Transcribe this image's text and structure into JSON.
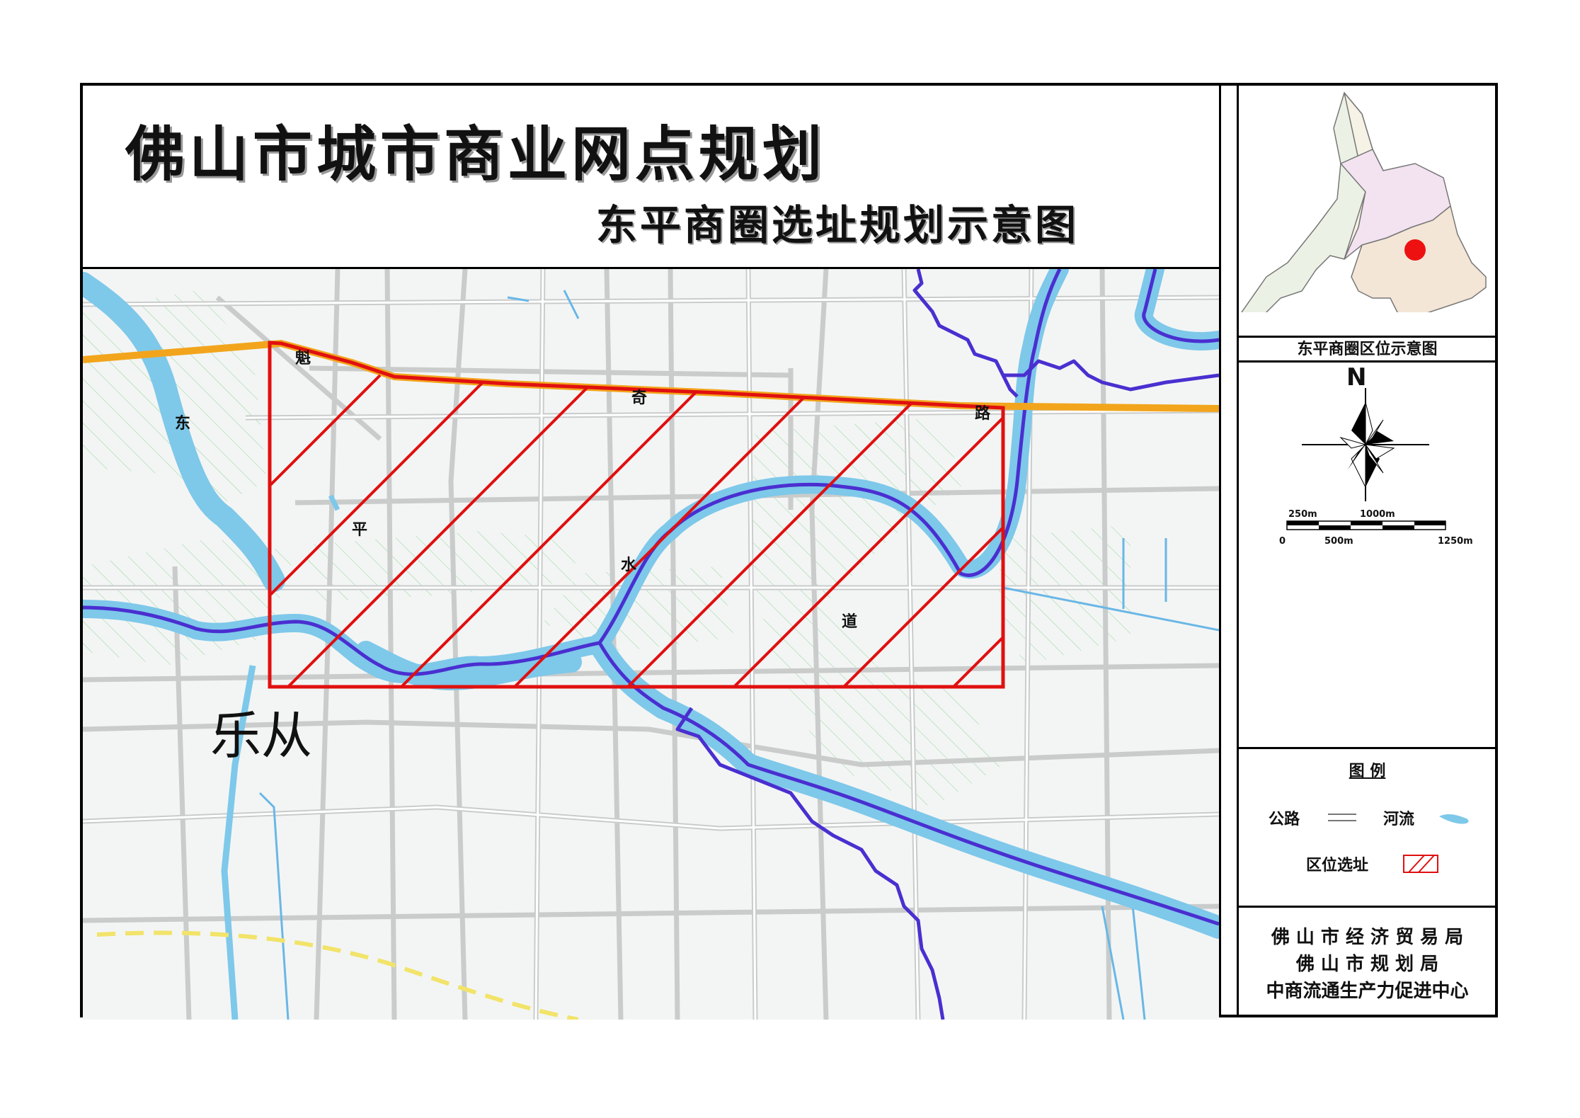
{
  "title": "佛山市城市商业网点规划",
  "subtitle": "东平商圈选址规划示意图",
  "map": {
    "road_name_chars": [
      "魁",
      "奇",
      "路"
    ],
    "river_name_chars": [
      "东",
      "平",
      "水",
      "道"
    ],
    "place_name": "乐从"
  },
  "inset": {
    "caption": "东平商圈区位示意图"
  },
  "north_arrow": {
    "label": "N"
  },
  "scale_bar": {
    "labels_top": [
      "250m",
      "1000m"
    ],
    "labels_bottom": [
      "0",
      "500m",
      "1250m"
    ]
  },
  "legend": {
    "title": "图  例",
    "items": [
      {
        "label": "公路",
        "symbol": "road-symbol"
      },
      {
        "label": "河流",
        "symbol": "river-symbol"
      },
      {
        "label": "区位选址",
        "symbol": "site-hatch-symbol"
      }
    ]
  },
  "organizations": [
    "佛 山 市 经 济 贸 易 局",
    "佛    山    市    规    划    局",
    "中商流通生产力促进中心"
  ],
  "colors": {
    "river": "#7ec8ea",
    "river_centerline": "#4a2fd0",
    "main_road": "#f2a51c",
    "site_boundary": "#e01010",
    "location_marker": "#ee1111",
    "map_background": "#f3f5f4"
  }
}
